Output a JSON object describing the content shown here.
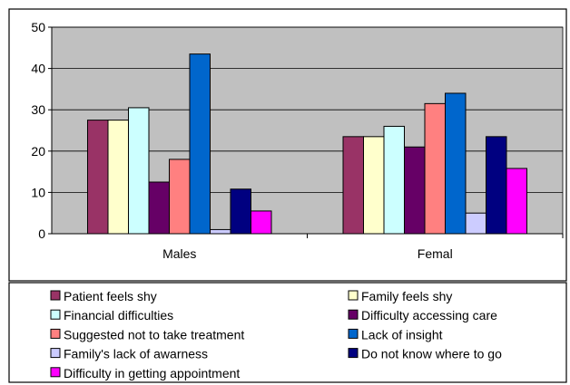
{
  "chart_data": {
    "type": "bar",
    "title": "",
    "xlabel": "",
    "ylabel": "",
    "ylim": [
      0,
      50
    ],
    "yticks": [
      0,
      10,
      20,
      30,
      40,
      50
    ],
    "grid": true,
    "legend_position": "bottom",
    "plot_background": "#c0c0c0",
    "categories": [
      "Males",
      "Femal"
    ],
    "series": [
      {
        "name": "Patient feels shy",
        "color": "#993366",
        "values": [
          27.5,
          23.5
        ]
      },
      {
        "name": "Family feels shy",
        "color": "#ffffcc",
        "values": [
          27.5,
          23.5
        ]
      },
      {
        "name": "Financial difficulties",
        "color": "#ccffff",
        "values": [
          30.5,
          26
        ]
      },
      {
        "name": "Difficulty accessing care",
        "color": "#660066",
        "values": [
          12.5,
          21
        ]
      },
      {
        "name": "Suggested not to take treatment",
        "color": "#ff8080",
        "values": [
          18,
          31.5
        ]
      },
      {
        "name": "Lack of insight",
        "color": "#0066cc",
        "values": [
          43.5,
          34
        ]
      },
      {
        "name": "Family's lack of awarness",
        "color": "#ccccff",
        "values": [
          1,
          5
        ]
      },
      {
        "name": "Do not know where to go",
        "color": "#000080",
        "values": [
          10.8,
          23.5
        ]
      },
      {
        "name": "Difficulty in getting appointment",
        "color": "#ff00ff",
        "values": [
          5.5,
          15.8
        ]
      }
    ],
    "legend_order": [
      "Patient feels shy",
      "Family feels shy",
      "Financial difficulties",
      "Difficulty accessing care",
      "Suggested not to take treatment",
      "Lack of insight",
      "Family's lack of awarness",
      "Do not know where to go",
      "Difficulty in getting appointment"
    ]
  }
}
